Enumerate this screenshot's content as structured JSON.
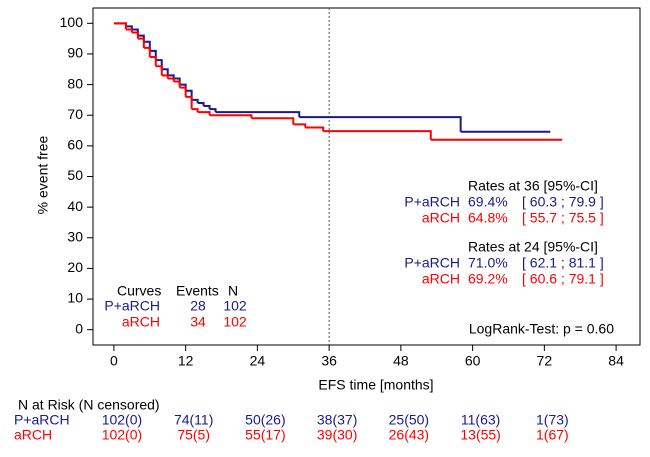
{
  "chart_data": {
    "type": "step",
    "x_label": "EFS time [months]",
    "y_label": "% event free",
    "xlim": [
      -3.5,
      88
    ],
    "ylim": [
      -5,
      105
    ],
    "xticks": [
      0,
      12,
      24,
      36,
      48,
      60,
      72,
      84
    ],
    "yticks": [
      0,
      10,
      20,
      30,
      40,
      50,
      60,
      70,
      80,
      90,
      100
    ],
    "reference_line": 36,
    "series": [
      {
        "name": "P+aRCH",
        "color": "#1a1a8c",
        "x": [
          0,
          2,
          3,
          4,
          5,
          6,
          7,
          8,
          9,
          10,
          11,
          12,
          13,
          14,
          15,
          16,
          17,
          31,
          58,
          73
        ],
        "values": [
          100,
          99,
          98,
          96,
          94,
          91,
          88,
          85,
          83,
          82,
          80,
          78,
          75,
          74,
          73,
          72,
          71,
          69.4,
          64.6,
          64.6
        ]
      },
      {
        "name": "aRCH",
        "color": "#ff0000",
        "x": [
          0,
          2,
          3,
          4,
          5,
          6,
          7,
          8,
          9,
          10,
          11,
          12,
          13,
          14,
          16,
          23,
          30,
          32,
          35,
          53,
          75
        ],
        "values": [
          100,
          98,
          97,
          95,
          92,
          89,
          86,
          83,
          82,
          81,
          79,
          76,
          72,
          71,
          70,
          69,
          67,
          66,
          64.8,
          62,
          62
        ]
      }
    ],
    "rates": [
      {
        "title": "Rates at 36  [95%-CI]",
        "rows": [
          {
            "estimate": "69.4%",
            "ci": "[ 60.3 ; 79.9 ]"
          },
          {
            "estimate": "64.8%",
            "ci": "[ 55.7 ; 75.5 ]"
          }
        ]
      },
      {
        "title": "Rates at 24  [95%-CI]",
        "rows": [
          {
            "estimate": "71.0%",
            "ci": "[ 62.1 ; 81.1 ]"
          },
          {
            "estimate": "69.2%",
            "ci": "[ 60.6 ; 79.1 ]"
          }
        ]
      }
    ],
    "curves_table": {
      "header": [
        "Curves",
        "Events",
        "N"
      ],
      "rows": [
        [
          "28",
          "102"
        ],
        [
          "34",
          "102"
        ]
      ]
    },
    "logrank": "LogRank-Test: p = 0.60",
    "risk_table": {
      "title": "N at Risk (N censored)",
      "rows": [
        [
          "102(0)",
          "74(11)",
          "50(26)",
          "38(37)",
          "25(50)",
          "11(63)",
          "1(73)"
        ],
        [
          "102(0)",
          "75(5)",
          "55(17)",
          "39(30)",
          "26(43)",
          "13(55)",
          "1(67)"
        ]
      ]
    }
  }
}
